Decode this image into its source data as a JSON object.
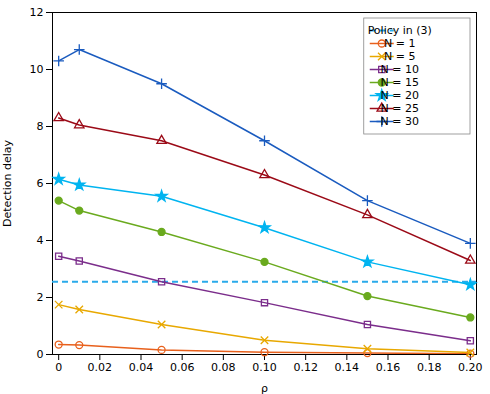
{
  "chart_data": {
    "type": "line",
    "xlabel": "ρ",
    "ylabel": "Detection delay",
    "x": [
      0,
      0.01,
      0.05,
      0.1,
      0.15,
      0.2
    ],
    "series": [
      {
        "name": "Policy in (3)",
        "type": "hline",
        "y": 2.55,
        "color": "#2aaaea",
        "line_style": "dashed"
      },
      {
        "name": "N = 1",
        "color": "#e8601c",
        "marker": "circle-open",
        "line_style": "solid",
        "values": [
          0.35,
          0.33,
          0.16,
          0.08,
          0.05,
          0.03
        ]
      },
      {
        "name": "N = 5",
        "color": "#e8a800",
        "marker": "x",
        "line_style": "solid",
        "values": [
          1.75,
          1.58,
          1.05,
          0.5,
          0.2,
          0.07
        ]
      },
      {
        "name": "N = 10",
        "color": "#7b2d8b",
        "marker": "square-open",
        "line_style": "solid",
        "values": [
          3.45,
          3.28,
          2.55,
          1.82,
          1.05,
          0.48
        ]
      },
      {
        "name": "N = 15",
        "color": "#6aaa1e",
        "marker": "circle",
        "line_style": "solid",
        "values": [
          5.4,
          5.05,
          4.3,
          3.25,
          2.05,
          1.3
        ]
      },
      {
        "name": "N = 20",
        "color": "#00b4f0",
        "marker": "star",
        "line_style": "solid",
        "values": [
          6.15,
          5.95,
          5.55,
          4.45,
          3.25,
          2.45
        ]
      },
      {
        "name": "N = 25",
        "color": "#9b0a17",
        "marker": "triangle-open",
        "line_style": "solid",
        "values": [
          8.3,
          8.05,
          7.5,
          6.3,
          4.9,
          3.3
        ]
      },
      {
        "name": "N = 30",
        "color": "#1a5bbf",
        "marker": "plus",
        "line_style": "solid",
        "values": [
          10.3,
          10.7,
          9.5,
          7.5,
          5.4,
          3.9
        ]
      }
    ],
    "xlim": [
      -0.003,
      0.203
    ],
    "ylim": [
      0,
      12
    ],
    "xticks": [
      0,
      0.02,
      0.04,
      0.06,
      0.08,
      {
        "value": 0.1,
        "label": "0.10"
      },
      0.12,
      0.14,
      0.16,
      0.18,
      {
        "value": 0.2,
        "label": "0.20"
      }
    ],
    "yticks": [
      0,
      2,
      4,
      6,
      8,
      10,
      12
    ],
    "legend": "upper right",
    "grid": false
  }
}
